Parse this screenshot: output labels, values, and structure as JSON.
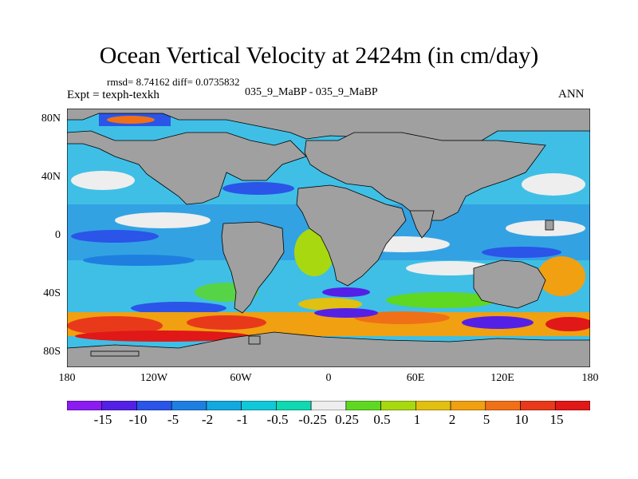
{
  "plot": {
    "title": "Ocean Vertical Velocity at 2424m (in cm/day)",
    "stats": "rmsd= 8.74162 diff= 0.0735832",
    "experiment": "Expt = texph-texkh",
    "subtitle": "035_9_MaBP - 035_9_MaBP",
    "season": "ANN"
  },
  "axes": {
    "y_ticks": [
      "80N",
      "40N",
      "0",
      "40S",
      "80S"
    ],
    "x_ticks": [
      "180",
      "120W",
      "60W",
      "0",
      "60E",
      "120E",
      "180"
    ]
  },
  "colorbar": {
    "labels": [
      "-15",
      "-10",
      "-5",
      "-2",
      "-1",
      "-0.5",
      "-0.25",
      "0.25",
      "0.5",
      "1",
      "2",
      "5",
      "10",
      "15"
    ],
    "colors": [
      "#8a1cf2",
      "#5520e6",
      "#2a55e8",
      "#1e7fe0",
      "#14a8e0",
      "#10c8d8",
      "#10d8b0",
      "#eeeeee",
      "#5ed820",
      "#a8d810",
      "#e0c010",
      "#f0a010",
      "#f07018",
      "#e83a1a",
      "#e01818"
    ]
  },
  "map_colors": {
    "land": "#a0a0a0",
    "ocean_base": "#3fbfe6"
  }
}
